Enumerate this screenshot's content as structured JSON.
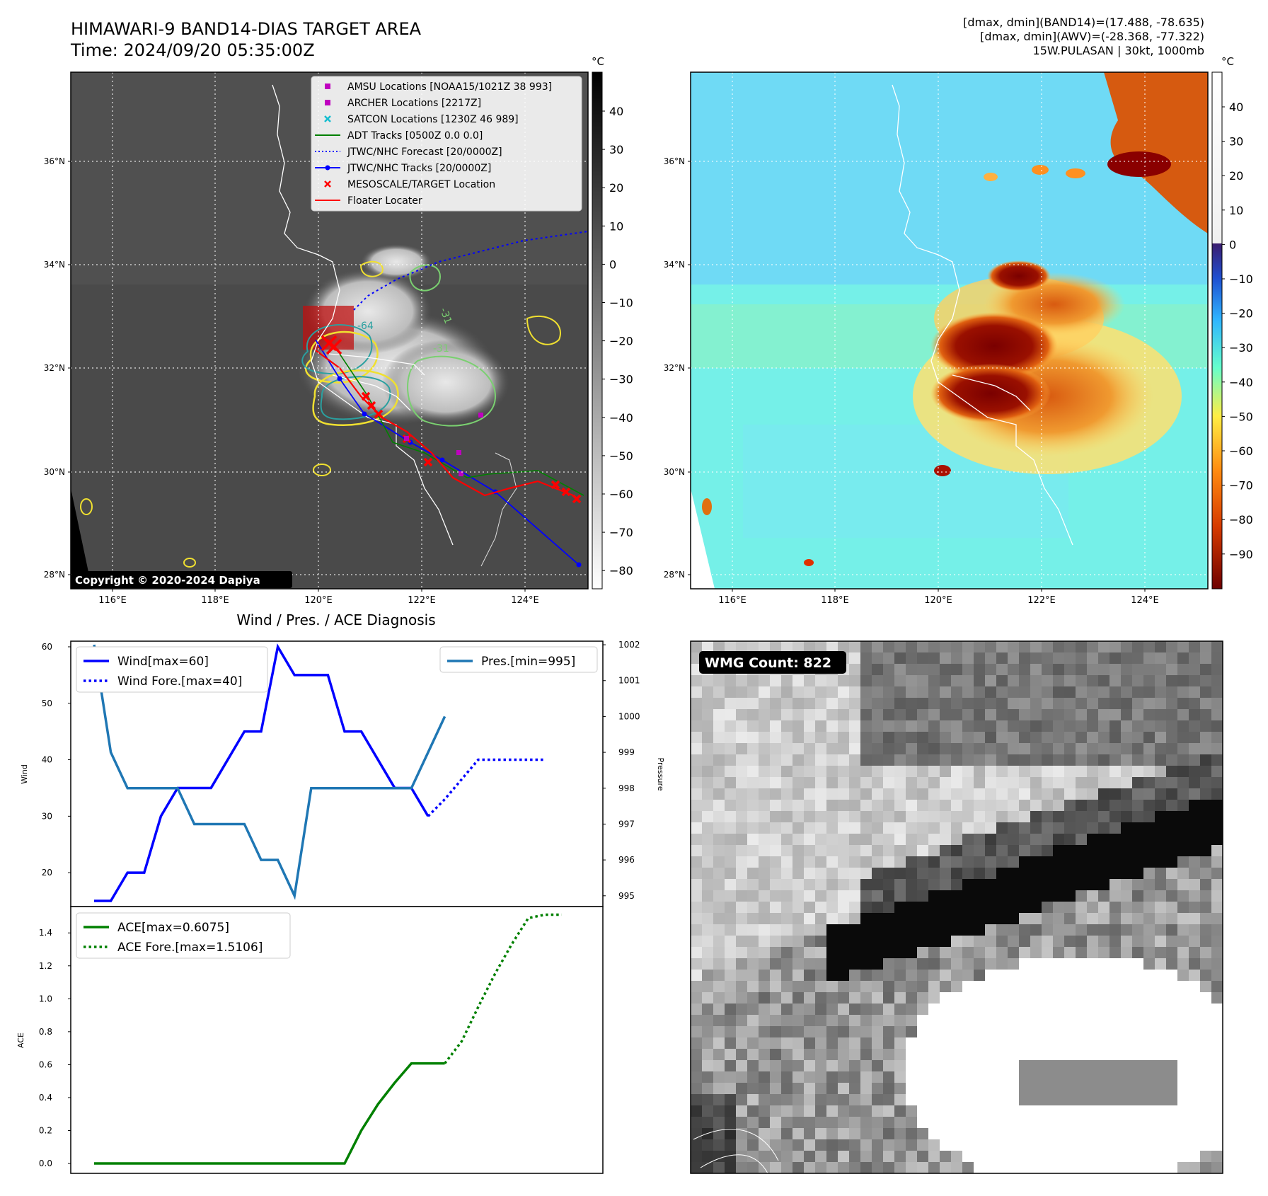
{
  "header": {
    "title_line1": "HIMAWARI-9 BAND14-DIAS TARGET AREA",
    "title_line2": "Time: 2024/09/20 05:35:00Z",
    "info_line1": "[dmax, dmin](BAND14)=(17.488, -78.635)",
    "info_line2": "[dmax, dmin](AWV)=(-28.368, -77.322)",
    "info_line3": "15W.PULASAN | 30kt, 1000mb"
  },
  "map": {
    "lon_ticks": [
      "116°E",
      "118°E",
      "120°E",
      "122°E",
      "124°E"
    ],
    "lat_ticks": [
      "36°N",
      "34°N",
      "32°N",
      "30°N",
      "28°N"
    ],
    "copyright": "Copyright © 2020-2024 Dapiya",
    "contour_labels": [
      "-31",
      "-31",
      "-64"
    ]
  },
  "legend_map": [
    {
      "label": "AMSU Locations [NOAA15/1021Z 38 993]",
      "marker": "square",
      "color": "#bf00bf"
    },
    {
      "label": "ARCHER Locations [2217Z]",
      "marker": "square",
      "color": "#bf00bf"
    },
    {
      "label": "SATCON Locations [1230Z 46 989]",
      "marker": "x",
      "color": "#17becf"
    },
    {
      "label": "ADT Tracks [0500Z 0.0 0.0]",
      "marker": "line",
      "color": "#008000"
    },
    {
      "label": "JTWC/NHC Forecast [20/0000Z]",
      "marker": "dotted",
      "color": "#0000ff"
    },
    {
      "label": "JTWC/NHC Tracks [20/0000Z]",
      "marker": "line-dot",
      "color": "#0000ff"
    },
    {
      "label": "MESOSCALE/TARGET Location",
      "marker": "x",
      "color": "#ff0000"
    },
    {
      "label": "Floater Locater",
      "marker": "line",
      "color": "#ff0000"
    }
  ],
  "colorbar_gray": {
    "unit": "°C",
    "ticks": [
      "40",
      "30",
      "20",
      "10",
      "0",
      "−10",
      "−20",
      "−30",
      "−40",
      "−50",
      "−60",
      "−70",
      "−80"
    ]
  },
  "colorbar_color": {
    "unit": "°C",
    "ticks": [
      "40",
      "30",
      "20",
      "10",
      "0",
      "−10",
      "−20",
      "−30",
      "−40",
      "−50",
      "−60",
      "−70",
      "−80",
      "−90"
    ]
  },
  "wmg": {
    "label": "WMG Count: 822"
  },
  "colors": {
    "wind": "#0000ff",
    "pressure": "#1f77b4",
    "ace": "#008000",
    "track": "#ff0000"
  },
  "chart_data": [
    {
      "type": "line",
      "title": "Wind / Pres. / ACE Diagnosis",
      "ylabel": "Wind",
      "y2label": "Pressure",
      "ylim": [
        14,
        61
      ],
      "y2lim": [
        994.7,
        1002.1
      ],
      "yticks": [
        20,
        30,
        40,
        50,
        60
      ],
      "y2ticks": [
        995,
        996,
        997,
        998,
        999,
        1000,
        1001,
        1002
      ],
      "series": [
        {
          "name": "Wind[max=60]",
          "style": "solid",
          "x": [
            0,
            1,
            2,
            3,
            4,
            5,
            6,
            7,
            8,
            9,
            10,
            11,
            12,
            13,
            14,
            15,
            16,
            17,
            18,
            19,
            20
          ],
          "values": [
            15,
            15,
            20,
            20,
            30,
            35,
            35,
            35,
            40,
            45,
            45,
            60,
            55,
            55,
            55,
            45,
            45,
            40,
            35,
            35,
            30
          ]
        },
        {
          "name": "Wind Fore.[max=40]",
          "style": "dotted",
          "x": [
            20,
            21,
            22,
            23,
            24,
            25,
            26,
            27
          ],
          "values": [
            30,
            33,
            36.5,
            40,
            40,
            40,
            40,
            40
          ]
        },
        {
          "name": "Pres.[min=995]",
          "axis": "right",
          "style": "solid",
          "x": [
            0,
            1,
            2,
            3,
            4,
            5,
            6,
            7,
            8,
            9,
            10,
            11,
            12,
            13,
            14,
            15,
            16,
            17,
            18,
            19,
            20,
            21
          ],
          "values": [
            1002,
            999,
            998,
            998,
            998,
            998,
            997,
            997,
            997,
            997,
            996,
            996,
            995,
            998,
            998,
            998,
            998,
            998,
            998,
            998,
            999,
            1000
          ]
        }
      ]
    },
    {
      "type": "line",
      "ylabel": "ACE",
      "ylim": [
        -0.06,
        1.56
      ],
      "yticks": [
        0.0,
        0.2,
        0.4,
        0.6,
        0.8,
        1.0,
        1.2,
        1.4
      ],
      "series": [
        {
          "name": "ACE[max=0.6075]",
          "style": "solid",
          "x": [
            0,
            15,
            16,
            17,
            18,
            19,
            20,
            21
          ],
          "values": [
            0,
            0,
            0.2,
            0.36,
            0.49,
            0.6075,
            0.6075,
            0.6075
          ]
        },
        {
          "name": "ACE Fore.[max=1.5106]",
          "style": "dotted",
          "x": [
            21,
            22,
            23,
            24,
            25,
            26,
            27,
            28
          ],
          "values": [
            0.6075,
            0.74,
            0.95,
            1.15,
            1.33,
            1.49,
            1.5106,
            1.5106
          ]
        }
      ]
    }
  ]
}
